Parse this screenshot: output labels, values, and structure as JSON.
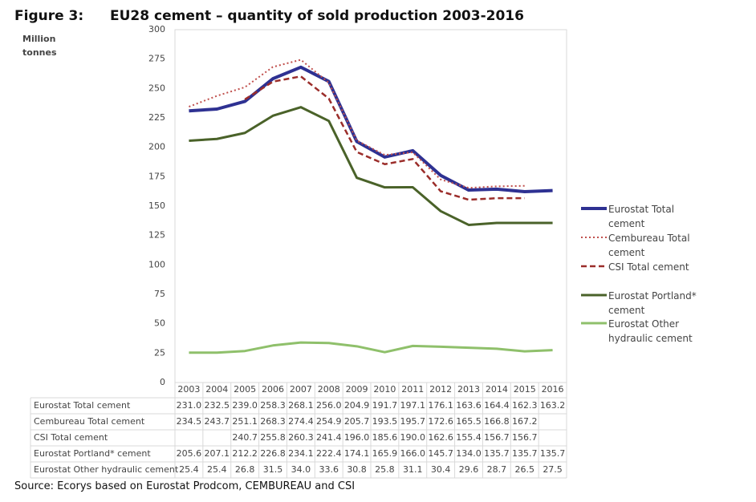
{
  "chart_data": {
    "type": "line",
    "figure_label": "Figure 3:",
    "title": "EU28 cement – quantity of sold production 2003-2016",
    "y_label": "Million tonnes",
    "source": "Source: Ecorys based on Eurostat Prodcom, CEMBUREAU and CSI",
    "categories": [
      "2003",
      "2004",
      "2005",
      "2006",
      "2007",
      "2008",
      "2009",
      "2010",
      "2011",
      "2012",
      "2013",
      "2014",
      "2015",
      "2016"
    ],
    "ylim": [
      0,
      300
    ],
    "yticks": [
      0,
      25,
      50,
      75,
      100,
      125,
      150,
      175,
      200,
      225,
      250,
      275,
      300
    ],
    "grid": false,
    "legend": "right",
    "data_table": true,
    "series": [
      {
        "name": "Eurostat Total cement",
        "color": "#2e3192",
        "width": 4,
        "dash": "solid",
        "values": [
          231.0,
          232.5,
          239.0,
          258.3,
          268.1,
          256.0,
          204.9,
          191.7,
          197.1,
          176.1,
          163.6,
          164.4,
          162.3,
          163.2
        ],
        "value_labels": [
          "231.0",
          "232.5",
          "239.0",
          "258.3",
          "268.1",
          "256.0",
          "204.9",
          "191.7",
          "197.1",
          "176.1",
          "163.6",
          "164.4",
          "162.3",
          "163.2"
        ]
      },
      {
        "name": "Cembureau Total cement",
        "color": "#c0504d",
        "width": 2,
        "dash": "dotted",
        "values": [
          234.5,
          243.7,
          251.1,
          268.3,
          274.4,
          254.9,
          205.7,
          193.5,
          195.7,
          172.6,
          165.5,
          166.8,
          167.2,
          null
        ],
        "value_labels": [
          "234.5",
          "243.7",
          "251.1",
          "268.3",
          "274.4",
          "254.9",
          "205.7",
          "193.5",
          "195.7",
          "172.6",
          "165.5",
          "166.8",
          "167.2",
          null
        ]
      },
      {
        "name": "CSI Total cement",
        "color": "#9b2d2a",
        "width": 2.5,
        "dash": "dashed",
        "values": [
          null,
          null,
          240.7,
          255.8,
          260.3,
          241.4,
          196.0,
          185.6,
          190.0,
          162.6,
          155.4,
          156.7,
          156.7,
          null
        ],
        "value_labels": [
          null,
          null,
          "240.7",
          "255.8",
          "260.3",
          "241.4",
          "196.0",
          "185.6",
          "190.0",
          "162.6",
          "155.4",
          "156.7",
          "156.7",
          null
        ]
      },
      {
        "name": "Eurostat Portland* cement",
        "color": "#4a6229",
        "width": 3,
        "dash": "solid",
        "values": [
          205.6,
          207.1,
          212.2,
          226.8,
          234.1,
          222.4,
          174.1,
          165.9,
          166.0,
          145.7,
          134.0,
          135.7,
          135.7,
          135.7
        ],
        "value_labels": [
          "205.6",
          "207.1",
          "212.2",
          "226.8",
          "234.1",
          "222.4",
          "174.1",
          "165.9",
          "166.0",
          "145.7",
          "134.0",
          "135.7",
          "135.7",
          "135.7"
        ]
      },
      {
        "name": "Eurostat Other hydraulic cement",
        "color": "#8fc06b",
        "width": 3,
        "dash": "solid",
        "values": [
          25.4,
          25.4,
          26.8,
          31.5,
          34.0,
          33.6,
          30.8,
          25.8,
          31.1,
          30.4,
          29.6,
          28.7,
          26.5,
          27.5
        ],
        "value_labels": [
          "25.4",
          "25.4",
          "26.8",
          "31.5",
          "34.0",
          "33.6",
          "30.8",
          "25.8",
          "31.1",
          "30.4",
          "29.6",
          "28.7",
          "26.5",
          "27.5"
        ]
      }
    ]
  }
}
